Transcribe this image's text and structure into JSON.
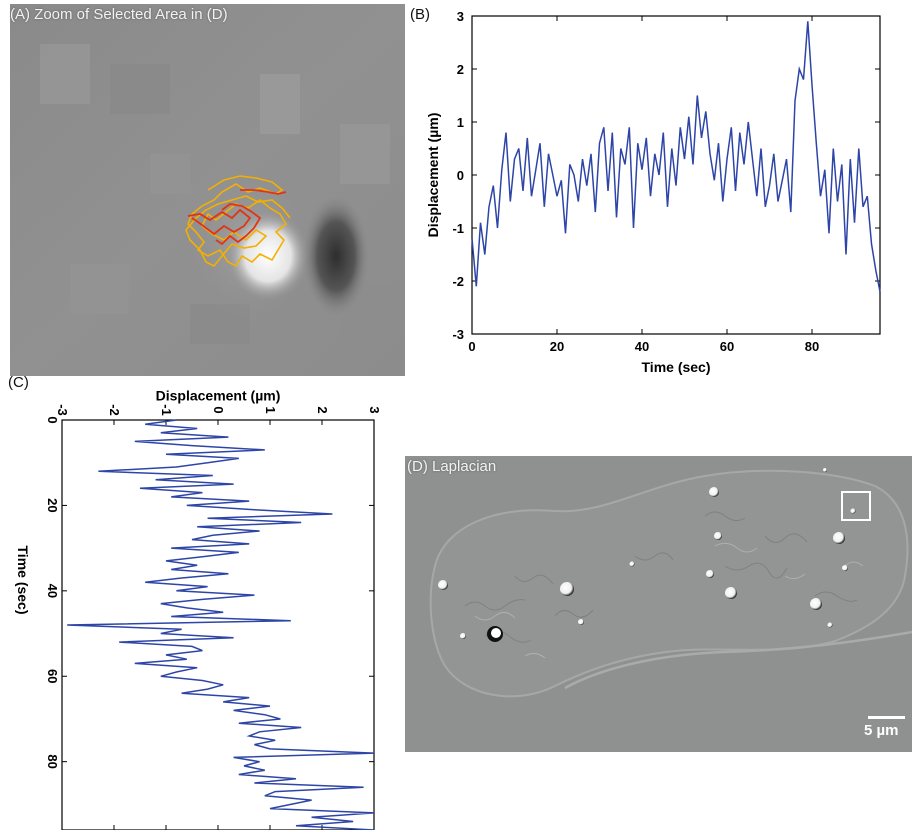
{
  "panel_a": {
    "label": "(A) Zoom of Selected Area in (D)",
    "colors": {
      "background": "#8e8e8e",
      "track_outer": "#f4b000",
      "track_inner": "#e23414",
      "bright_spot": "#ffffff",
      "dark_spot": "#3a3a3a"
    }
  },
  "panel_b": {
    "label": "(B)",
    "color": "#2e45a8"
  },
  "panel_c": {
    "label": "(C)",
    "color": "#2e45a8"
  },
  "panel_d": {
    "label": "(D) Laplacian",
    "scalebar_label": "5 µm",
    "colors": {
      "background": "#8f9190",
      "particle": "#ffffff"
    }
  },
  "chart_data": [
    {
      "type": "line",
      "panel": "B",
      "title": "",
      "xlabel": "Time (sec)",
      "ylabel": "Displacement (µm)",
      "xlim": [
        0,
        96
      ],
      "ylim": [
        -3,
        3
      ],
      "xticks": [
        0,
        20,
        40,
        60,
        80
      ],
      "yticks": [
        -3,
        -2,
        -1,
        0,
        1,
        2,
        3
      ],
      "grid": false,
      "series": [
        {
          "x": [
            0,
            1,
            2,
            3,
            4,
            5,
            6,
            7,
            8,
            9,
            10,
            11,
            12,
            13,
            14,
            15,
            16,
            17,
            18,
            19,
            20,
            21,
            22,
            23,
            24,
            25,
            26,
            27,
            28,
            29,
            30,
            31,
            32,
            33,
            34,
            35,
            36,
            37,
            38,
            39,
            40,
            41,
            42,
            43,
            44,
            45,
            46,
            47,
            48,
            49,
            50,
            51,
            52,
            53,
            54,
            55,
            56,
            57,
            58,
            59,
            60,
            61,
            62,
            63,
            64,
            65,
            66,
            67,
            68,
            69,
            70,
            71,
            72,
            73,
            74,
            75,
            76,
            77,
            78,
            79,
            80,
            81,
            82,
            83,
            84,
            85,
            86,
            87,
            88,
            89,
            90,
            91,
            92,
            93,
            94,
            95,
            96
          ],
          "values": [
            -1.2,
            -2.1,
            -0.9,
            -1.5,
            -0.6,
            -0.2,
            -1.0,
            0.1,
            0.8,
            -0.5,
            0.3,
            0.5,
            -0.3,
            0.7,
            -0.4,
            0.1,
            0.6,
            -0.6,
            0.4,
            0.0,
            -0.4,
            -0.1,
            -1.1,
            0.2,
            0.0,
            -0.5,
            0.3,
            -0.2,
            0.4,
            -0.7,
            0.6,
            0.9,
            -0.3,
            0.8,
            -0.8,
            0.5,
            0.2,
            0.9,
            -1.0,
            0.6,
            0.1,
            0.7,
            -0.4,
            0.4,
            0.0,
            0.8,
            -0.6,
            0.5,
            -0.2,
            0.9,
            0.3,
            1.1,
            0.2,
            1.5,
            0.7,
            1.2,
            0.4,
            -0.1,
            0.6,
            -0.5,
            0.3,
            0.9,
            -0.3,
            0.8,
            0.2,
            1.0,
            0.3,
            -0.4,
            0.5,
            -0.6,
            -0.2,
            0.4,
            -0.5,
            -0.1,
            0.3,
            -0.7,
            1.4,
            2.0,
            1.8,
            2.9,
            1.7,
            0.6,
            -0.4,
            0.1,
            -1.1,
            0.5,
            -0.5,
            0.2,
            -1.5,
            0.3,
            -0.9,
            0.5,
            -0.6,
            -0.4,
            -1.3,
            -1.8,
            -2.2
          ]
        }
      ]
    },
    {
      "type": "line",
      "panel": "C",
      "orientation": "time on vertical axis (downward), displacement on horizontal axis (top)",
      "title": "",
      "xlabel": "Time (sec)",
      "ylabel": "Displacement (µm)",
      "xlim": [
        0,
        96
      ],
      "ylim": [
        -3,
        3
      ],
      "xticks": [
        0,
        20,
        40,
        60,
        80
      ],
      "yticks": [
        -3,
        -2,
        -1,
        0,
        1,
        2,
        3
      ],
      "grid": false,
      "series": [
        {
          "x": [
            0,
            1,
            2,
            3,
            4,
            5,
            6,
            7,
            8,
            9,
            10,
            11,
            12,
            13,
            14,
            15,
            16,
            17,
            18,
            19,
            20,
            21,
            22,
            23,
            24,
            25,
            26,
            27,
            28,
            29,
            30,
            31,
            32,
            33,
            34,
            35,
            36,
            37,
            38,
            39,
            40,
            41,
            42,
            43,
            44,
            45,
            46,
            47,
            48,
            49,
            50,
            51,
            52,
            53,
            54,
            55,
            56,
            57,
            58,
            59,
            60,
            61,
            62,
            63,
            64,
            65,
            66,
            67,
            68,
            69,
            70,
            71,
            72,
            73,
            74,
            75,
            76,
            77,
            78,
            79,
            80,
            81,
            82,
            83,
            84,
            85,
            86,
            87,
            88,
            89,
            90,
            91,
            92,
            93,
            94,
            95,
            96
          ],
          "values": [
            -0.8,
            -1.4,
            -0.4,
            -1.1,
            0.2,
            -1.6,
            -0.5,
            0.9,
            -1.0,
            0.4,
            -0.2,
            -0.8,
            -2.3,
            -0.1,
            -1.2,
            0.3,
            -1.5,
            -0.3,
            -0.9,
            0.6,
            -0.6,
            0.7,
            2.2,
            -0.2,
            1.6,
            -0.4,
            0.8,
            -0.1,
            -0.5,
            0.6,
            -0.9,
            0.4,
            -0.3,
            -1.0,
            -0.4,
            -0.9,
            0.2,
            -0.7,
            -1.4,
            -0.2,
            -0.8,
            0.7,
            -0.3,
            -1.1,
            -0.6,
            0.1,
            -0.9,
            1.4,
            -2.9,
            -0.7,
            -1.1,
            0.3,
            -1.9,
            -0.5,
            -0.3,
            -1.0,
            -0.6,
            -1.6,
            -0.4,
            -0.8,
            -1.1,
            -0.3,
            0.1,
            -0.2,
            -0.7,
            0.6,
            0.1,
            1.0,
            0.3,
            0.9,
            1.2,
            0.4,
            1.6,
            0.8,
            0.6,
            1.1,
            0.7,
            1.0,
            3.0,
            0.3,
            0.8,
            0.5,
            0.9,
            0.4,
            1.5,
            0.7,
            2.8,
            1.1,
            0.9,
            1.8,
            1.4,
            1.0,
            3.0,
            1.8,
            2.6,
            1.5,
            3.0
          ]
        }
      ]
    }
  ]
}
